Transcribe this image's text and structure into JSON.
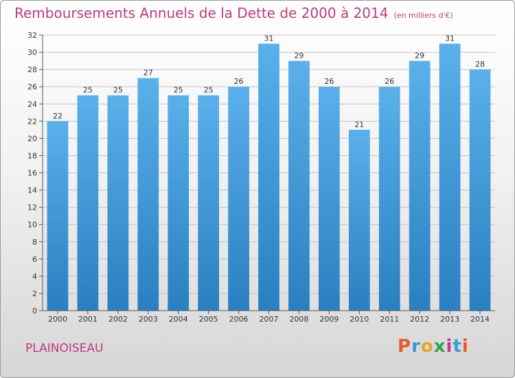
{
  "colors": {
    "title": "#c0397a",
    "bar_light": "#5ab0ea",
    "bar_dark": "#2a7fc0",
    "logo_letters": [
      "#e85a2a",
      "#3a9ad8",
      "#e8a42a",
      "#2aa84a",
      "#c03a8a",
      "#3a9ad8",
      "#e85a2a"
    ]
  },
  "header": {
    "title": "Remboursements Annuels de la Dette de 2000 à 2014",
    "unit": "(en milliers d'€)"
  },
  "footer": {
    "commune": "PLAINOISEAU",
    "logo_text": "Proxiti"
  },
  "chart_data": {
    "type": "bar",
    "title": "Remboursements Annuels de la Dette de 2000 à 2014",
    "ylabel": "en milliers d'€",
    "xlabel": "",
    "categories": [
      "2000",
      "2001",
      "2002",
      "2003",
      "2004",
      "2005",
      "2006",
      "2007",
      "2008",
      "2009",
      "2010",
      "2011",
      "2012",
      "2013",
      "2014"
    ],
    "values": [
      22,
      25,
      25,
      27,
      25,
      25,
      26,
      31,
      29,
      26,
      21,
      26,
      29,
      31,
      28
    ],
    "ylim": [
      0,
      32
    ],
    "yticks": [
      0,
      2,
      4,
      6,
      8,
      10,
      12,
      14,
      16,
      18,
      20,
      22,
      24,
      26,
      28,
      30,
      32
    ],
    "grid": true
  }
}
